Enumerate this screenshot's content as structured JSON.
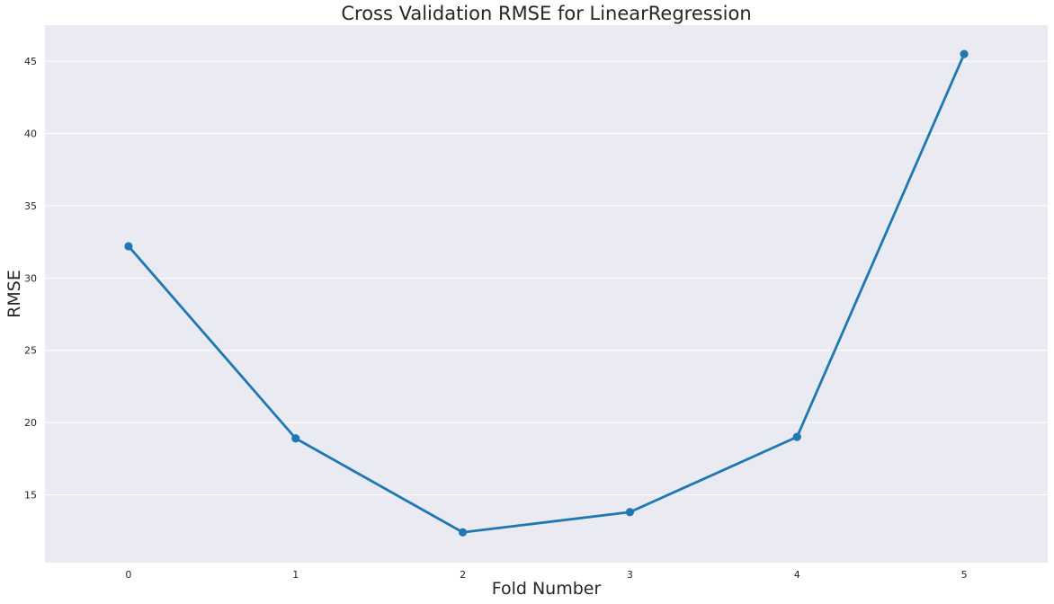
{
  "chart_data": {
    "type": "line",
    "title": "Cross Validation RMSE for LinearRegression",
    "xlabel": "Fold Number",
    "ylabel": "RMSE",
    "categories": [
      "0",
      "1",
      "2",
      "3",
      "4",
      "5"
    ],
    "series": [
      {
        "values": [
          32.2,
          18.9,
          12.4,
          13.8,
          19.0,
          45.5
        ]
      }
    ],
    "yticks": [
      15,
      20,
      25,
      30,
      35,
      40,
      45
    ],
    "ylim": [
      10.3,
      47.5
    ],
    "grid": true,
    "colors": {
      "background": "#eaeaf2",
      "grid": "#ffffff",
      "line": "#1f77b4",
      "text": "#262626"
    }
  }
}
